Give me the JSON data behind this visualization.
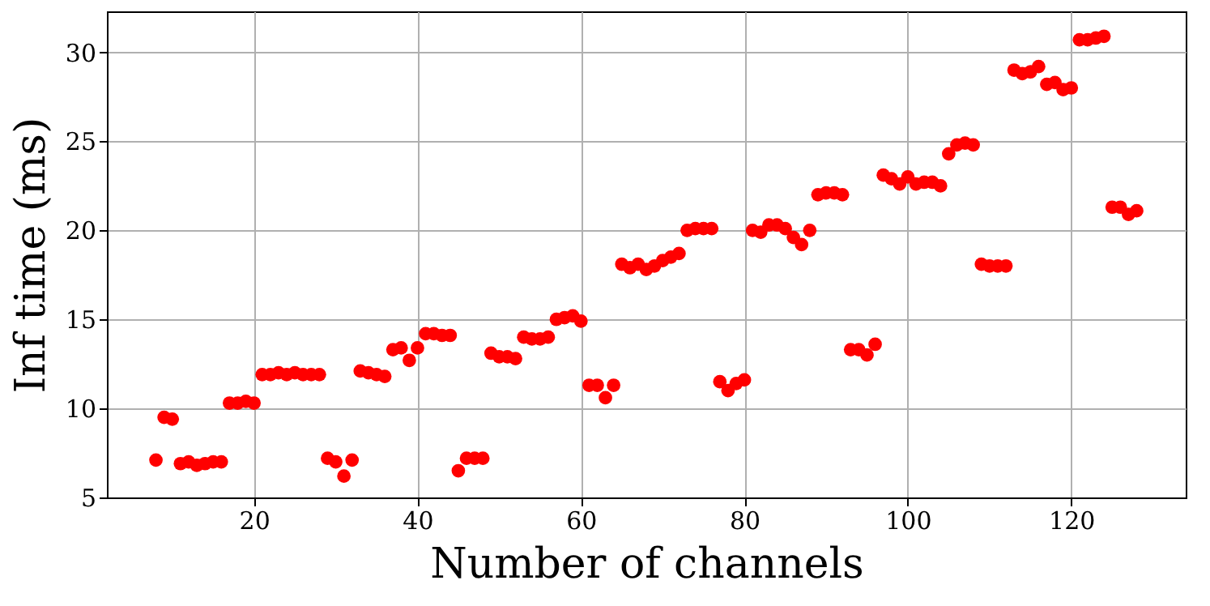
{
  "chart_data": {
    "type": "scatter",
    "xlabel": "Number of channels",
    "ylabel": "Inf time (ms)",
    "x": [
      8,
      9,
      10,
      11,
      12,
      13,
      14,
      15,
      16,
      17,
      18,
      19,
      20,
      21,
      22,
      23,
      24,
      25,
      26,
      27,
      28,
      29,
      30,
      31,
      32,
      33,
      34,
      35,
      36,
      37,
      38,
      39,
      40,
      41,
      42,
      43,
      44,
      45,
      46,
      47,
      48,
      49,
      50,
      51,
      52,
      53,
      54,
      55,
      56,
      57,
      58,
      59,
      60,
      61,
      62,
      63,
      64,
      65,
      66,
      67,
      68,
      69,
      70,
      71,
      72,
      73,
      74,
      75,
      76,
      77,
      78,
      79,
      80,
      81,
      82,
      83,
      84,
      85,
      86,
      87,
      88,
      89,
      90,
      91,
      92,
      93,
      94,
      95,
      96,
      97,
      98,
      99,
      100,
      101,
      102,
      103,
      104,
      105,
      106,
      107,
      108,
      109,
      110,
      111,
      112,
      113,
      114,
      115,
      116,
      117,
      118,
      119,
      120,
      121,
      122,
      123,
      124,
      125,
      126,
      127,
      128
    ],
    "series": [
      {
        "color": "#ff0000",
        "values": [
          7.1,
          9.5,
          9.4,
          6.9,
          7.0,
          6.8,
          6.9,
          7.0,
          7.0,
          10.3,
          10.3,
          10.4,
          10.3,
          11.9,
          11.9,
          12.0,
          11.9,
          12.0,
          11.9,
          11.9,
          11.9,
          7.2,
          7.0,
          6.2,
          7.1,
          12.1,
          12.0,
          11.9,
          11.8,
          13.3,
          13.4,
          12.7,
          13.4,
          14.2,
          14.2,
          14.1,
          14.1,
          6.5,
          7.2,
          7.2,
          7.2,
          13.1,
          12.9,
          12.9,
          12.8,
          14.0,
          13.9,
          13.9,
          14.0,
          15.0,
          15.1,
          15.2,
          14.9,
          11.3,
          11.3,
          10.6,
          11.3,
          18.1,
          17.9,
          18.1,
          17.8,
          18.0,
          18.3,
          18.5,
          18.7,
          20.0,
          20.1,
          20.1,
          20.1,
          11.5,
          11.0,
          11.4,
          11.6,
          20.0,
          19.9,
          20.3,
          20.3,
          20.1,
          19.6,
          19.2,
          20.0,
          22.0,
          22.1,
          22.1,
          22.0,
          13.3,
          13.3,
          13.0,
          13.6,
          23.1,
          22.9,
          22.6,
          23.0,
          22.6,
          22.7,
          22.7,
          22.5,
          24.3,
          24.8,
          24.9,
          24.8,
          18.1,
          18.0,
          18.0,
          18.0,
          29.0,
          28.8,
          28.9,
          29.2,
          28.2,
          28.3,
          27.9,
          28.0,
          30.7,
          30.7,
          30.8,
          30.9,
          21.3,
          21.3,
          20.9,
          21.1
        ]
      }
    ],
    "xlim": [
      2,
      134
    ],
    "xticks": [
      20,
      40,
      60,
      80,
      100,
      120
    ],
    "ylim": [
      5,
      32.3
    ],
    "yticks": [
      5,
      10,
      15,
      20,
      25,
      30
    ],
    "grid": true,
    "marker": "circle"
  }
}
